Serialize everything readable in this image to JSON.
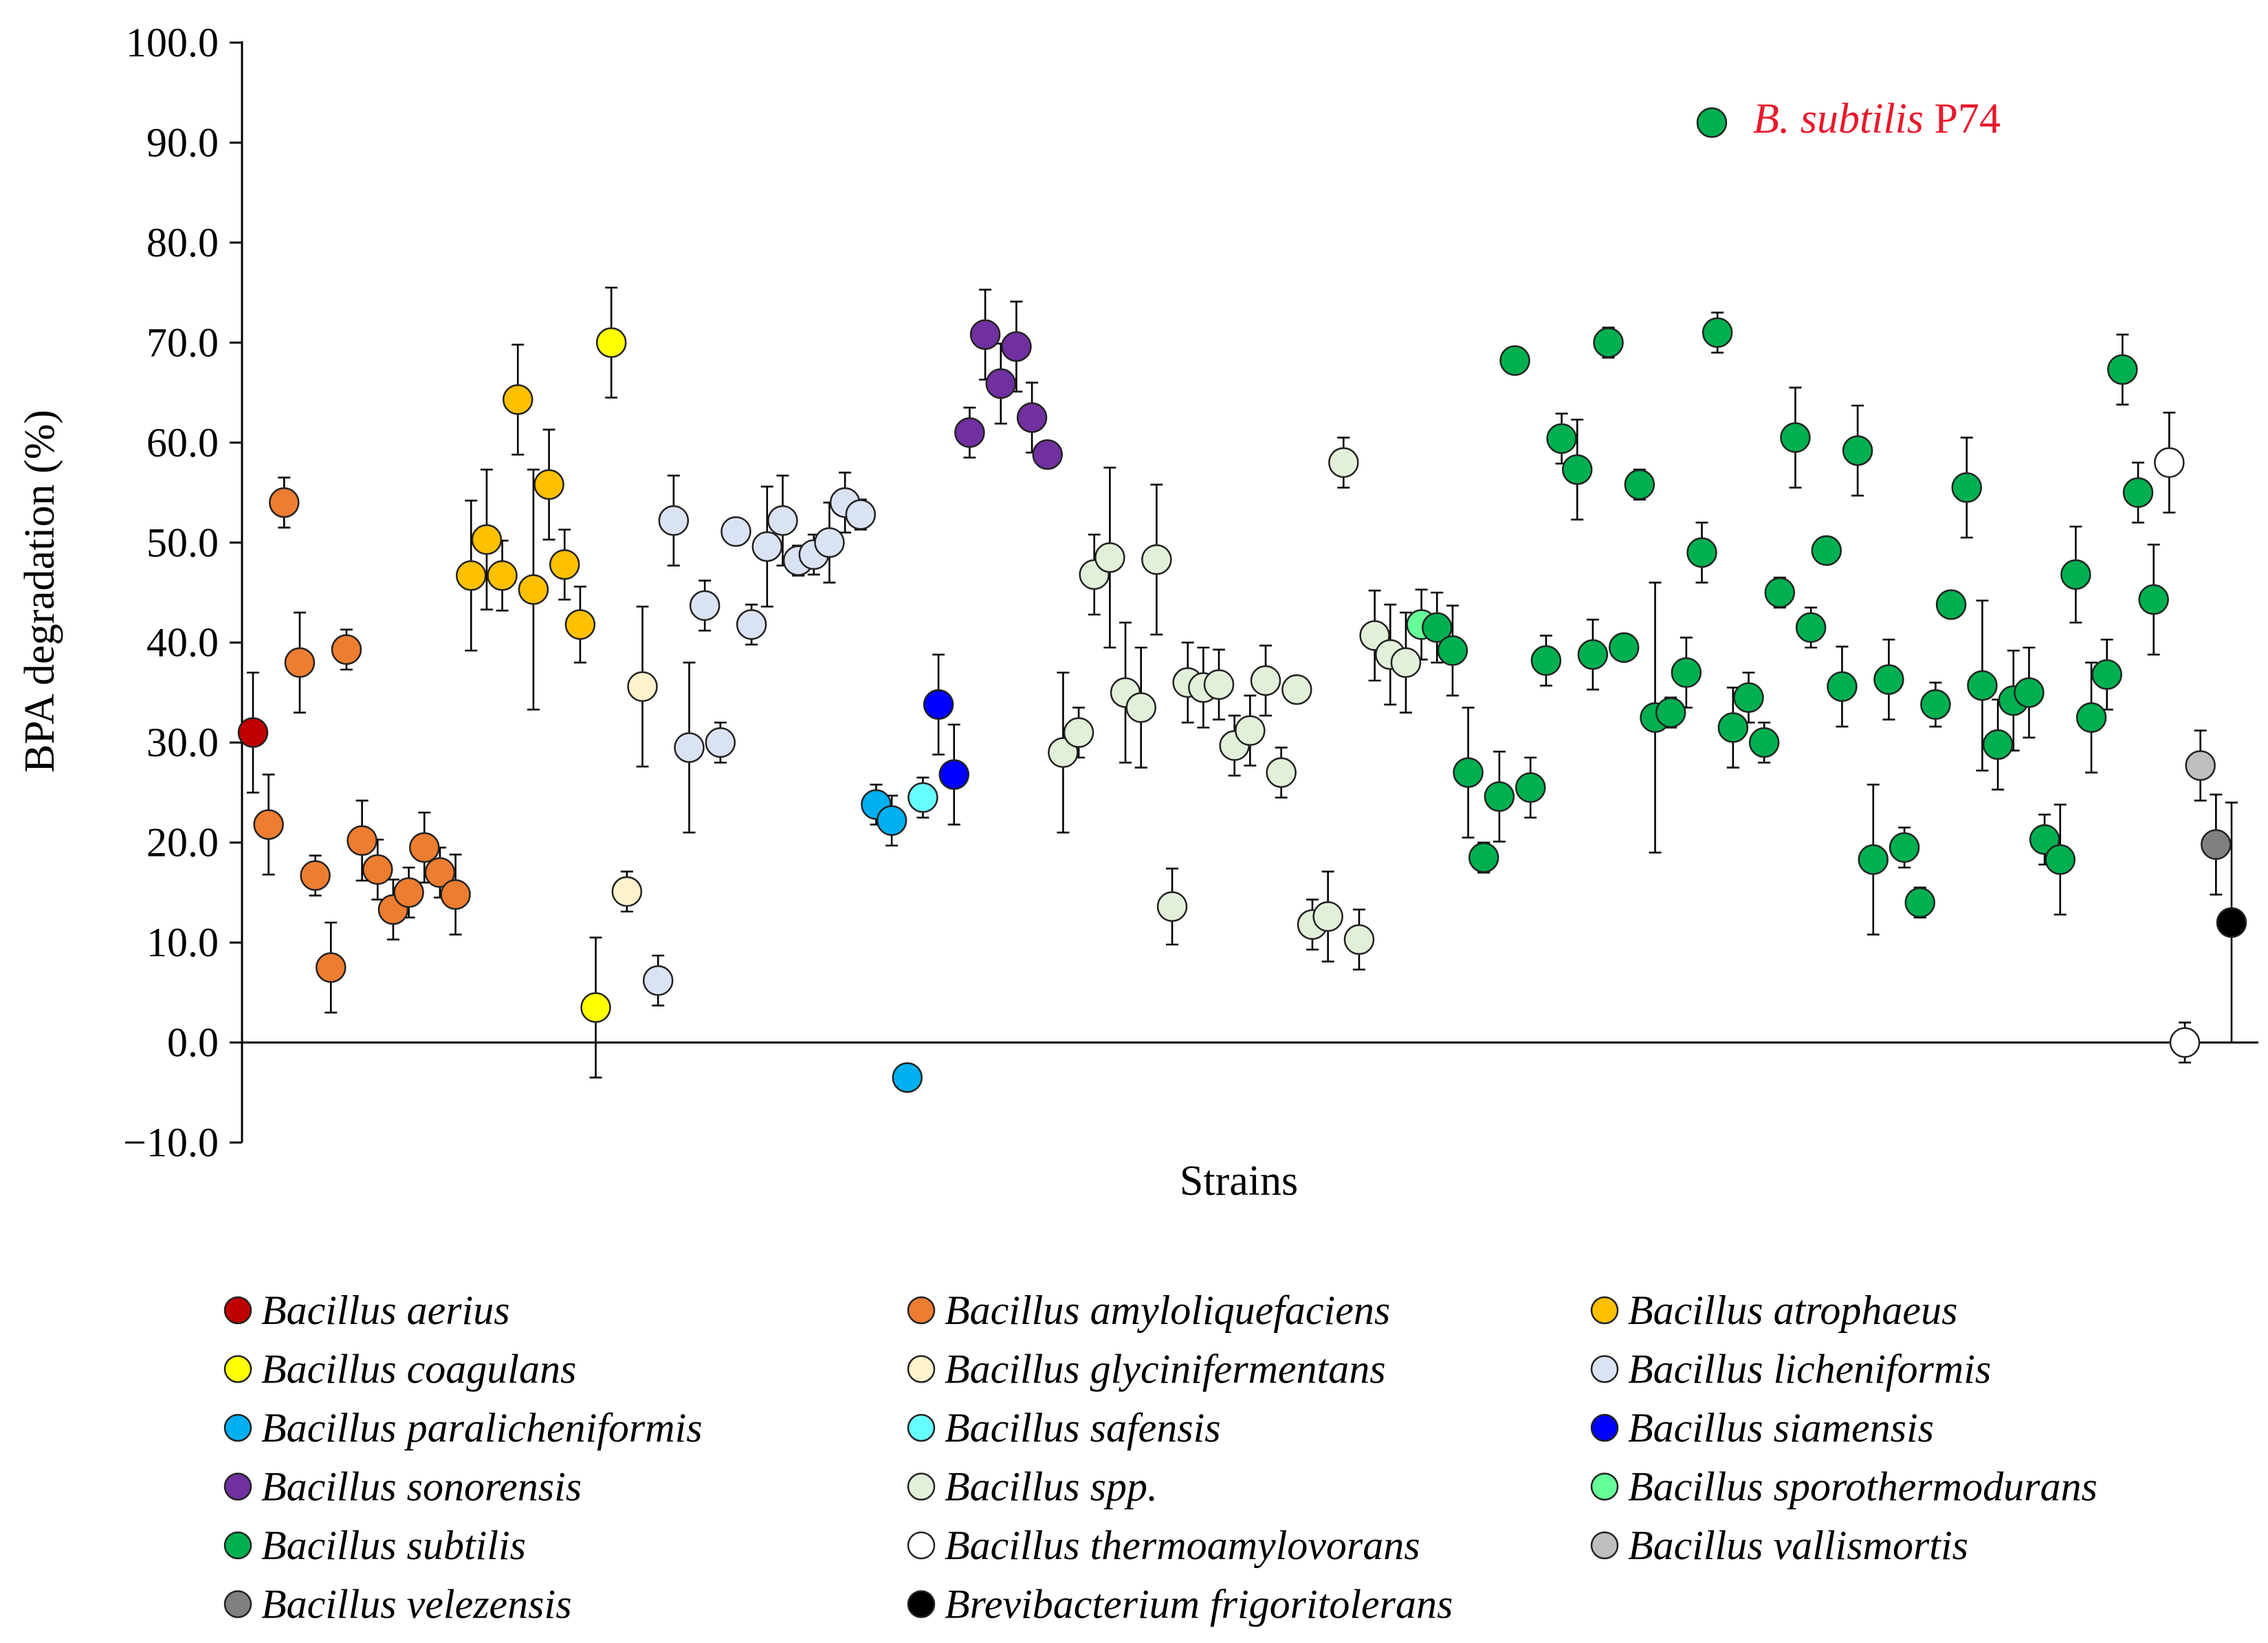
{
  "chart_data": {
    "type": "scatter",
    "title": "",
    "xlabel": "Strains",
    "ylabel": "BPA degradation (%)",
    "ylim": [
      -10,
      100
    ],
    "yticks": [
      "100.0",
      "90.0",
      "80.0",
      "70.0",
      "60.0",
      "50.0",
      "40.0",
      "30.0",
      "20.0",
      "10.0",
      "0.0",
      "−10.0"
    ],
    "annotation": {
      "italic": "B. subtilis",
      "rest": " P74",
      "value": 92.0,
      "species": "Bacillus subtilis",
      "x": 97
    },
    "species": [
      {
        "name": "Bacillus aerius",
        "color": "#c00000"
      },
      {
        "name": "Bacillus amyloliquefaciens",
        "color": "#ed7d31"
      },
      {
        "name": "Bacillus atrophaeus",
        "color": "#ffc000"
      },
      {
        "name": "Bacillus coagulans",
        "color": "#ffff00"
      },
      {
        "name": "Bacillus glycinifermentans",
        "color": "#fff2cc"
      },
      {
        "name": "Bacillus licheniformis",
        "color": "#dae3f3"
      },
      {
        "name": "Bacillus paralicheniformis",
        "color": "#00b0f0"
      },
      {
        "name": "Bacillus safensis",
        "color": "#66ffff"
      },
      {
        "name": "Bacillus siamensis",
        "color": "#0000ff"
      },
      {
        "name": "Bacillus sonorensis",
        "color": "#7030a0"
      },
      {
        "name": "Bacillus spp.",
        "color": "#e2f0d9"
      },
      {
        "name": "Bacillus sporothermodurans",
        "color": "#66ff99"
      },
      {
        "name": "Bacillus subtilis",
        "color": "#00b050"
      },
      {
        "name": "Bacillus thermoamylovorans",
        "color": "#ffffff"
      },
      {
        "name": "Bacillus vallismortis",
        "color": "#bfbfbf"
      },
      {
        "name": "Bacillus velezensis",
        "color": "#808080"
      },
      {
        "name": "Brevibacterium frigoritolerans",
        "color": "#000000"
      }
    ],
    "points": [
      {
        "s": 0,
        "x": 1,
        "y": 31.0,
        "e": 6
      },
      {
        "s": 1,
        "x": 2,
        "y": 21.8,
        "e": 5
      },
      {
        "s": 1,
        "x": 3,
        "y": 54.0,
        "e": 2.5
      },
      {
        "s": 1,
        "x": 4,
        "y": 38.0,
        "e": 5
      },
      {
        "s": 1,
        "x": 5,
        "y": 16.7,
        "e": 2
      },
      {
        "s": 1,
        "x": 6,
        "y": 7.5,
        "e": 4.5
      },
      {
        "s": 1,
        "x": 7,
        "y": 39.3,
        "e": 2
      },
      {
        "s": 1,
        "x": 8,
        "y": 20.2,
        "e": 4
      },
      {
        "s": 1,
        "x": 9,
        "y": 17.3,
        "e": 3
      },
      {
        "s": 1,
        "x": 10,
        "y": 13.3,
        "e": 3
      },
      {
        "s": 1,
        "x": 11,
        "y": 15.0,
        "e": 2.5
      },
      {
        "s": 1,
        "x": 12,
        "y": 19.5,
        "e": 3.5
      },
      {
        "s": 1,
        "x": 13,
        "y": 17.0,
        "e": 2.5
      },
      {
        "s": 1,
        "x": 14,
        "y": 14.8,
        "e": 4
      },
      {
        "s": 2,
        "x": 15,
        "y": 46.7,
        "e": 7.5
      },
      {
        "s": 2,
        "x": 16,
        "y": 50.3,
        "e": 7
      },
      {
        "s": 2,
        "x": 17,
        "y": 46.7,
        "e": 3.5
      },
      {
        "s": 2,
        "x": 18,
        "y": 64.3,
        "e": 5.5
      },
      {
        "s": 2,
        "x": 19,
        "y": 45.3,
        "e": 12
      },
      {
        "s": 2,
        "x": 20,
        "y": 55.8,
        "e": 5.5
      },
      {
        "s": 2,
        "x": 21,
        "y": 47.8,
        "e": 3.5
      },
      {
        "s": 2,
        "x": 22,
        "y": 41.8,
        "e": 3.8
      },
      {
        "s": 3,
        "x": 23,
        "y": 3.5,
        "e": 7
      },
      {
        "s": 3,
        "x": 24,
        "y": 70.0,
        "e": 5.5
      },
      {
        "s": 4,
        "x": 25,
        "y": 15.1,
        "e": 2
      },
      {
        "s": 4,
        "x": 26,
        "y": 35.6,
        "e": 8
      },
      {
        "s": 5,
        "x": 27,
        "y": 6.2,
        "e": 2.5
      },
      {
        "s": 5,
        "x": 28,
        "y": 52.2,
        "e": 4.5
      },
      {
        "s": 5,
        "x": 29,
        "y": 29.5,
        "e": 8.5
      },
      {
        "s": 5,
        "x": 30,
        "y": 43.7,
        "e": 2.5
      },
      {
        "s": 5,
        "x": 31,
        "y": 30.0,
        "e": 2
      },
      {
        "s": 5,
        "x": 32,
        "y": 51.1,
        "e": 1
      },
      {
        "s": 5,
        "x": 33,
        "y": 41.8,
        "e": 2
      },
      {
        "s": 5,
        "x": 34,
        "y": 49.6,
        "e": 6
      },
      {
        "s": 5,
        "x": 35,
        "y": 52.2,
        "e": 4.5
      },
      {
        "s": 5,
        "x": 36,
        "y": 48.2,
        "e": 1.5
      },
      {
        "s": 5,
        "x": 37,
        "y": 48.8,
        "e": 2
      },
      {
        "s": 5,
        "x": 38,
        "y": 50.0,
        "e": 4
      },
      {
        "s": 5,
        "x": 39,
        "y": 54.0,
        "e": 3
      },
      {
        "s": 5,
        "x": 40,
        "y": 52.8,
        "e": 1.5
      },
      {
        "s": 6,
        "x": 41,
        "y": 23.8,
        "e": 2
      },
      {
        "s": 6,
        "x": 42,
        "y": 22.2,
        "e": 2.5
      },
      {
        "s": 6,
        "x": 43,
        "y": -3.5,
        "e": 0
      },
      {
        "s": 7,
        "x": 44,
        "y": 24.5,
        "e": 2
      },
      {
        "s": 8,
        "x": 45,
        "y": 33.8,
        "e": 5
      },
      {
        "s": 8,
        "x": 46,
        "y": 26.8,
        "e": 5
      },
      {
        "s": 9,
        "x": 47,
        "y": 61.0,
        "e": 2.5
      },
      {
        "s": 9,
        "x": 48,
        "y": 70.8,
        "e": 4.5
      },
      {
        "s": 9,
        "x": 49,
        "y": 65.9,
        "e": 4
      },
      {
        "s": 9,
        "x": 50,
        "y": 69.6,
        "e": 4.5
      },
      {
        "s": 9,
        "x": 51,
        "y": 62.5,
        "e": 3.5
      },
      {
        "s": 9,
        "x": 52,
        "y": 58.8,
        "e": 1
      },
      {
        "s": 10,
        "x": 53,
        "y": 29.0,
        "e": 8
      },
      {
        "s": 10,
        "x": 54,
        "y": 31.0,
        "e": 2.5
      },
      {
        "s": 10,
        "x": 55,
        "y": 46.8,
        "e": 4
      },
      {
        "s": 10,
        "x": 56,
        "y": 48.5,
        "e": 9
      },
      {
        "s": 10,
        "x": 57,
        "y": 35.0,
        "e": 7
      },
      {
        "s": 10,
        "x": 58,
        "y": 33.5,
        "e": 6
      },
      {
        "s": 10,
        "x": 59,
        "y": 48.3,
        "e": 7.5
      },
      {
        "s": 10,
        "x": 60,
        "y": 13.6,
        "e": 3.8
      },
      {
        "s": 10,
        "x": 61,
        "y": 36.0,
        "e": 4
      },
      {
        "s": 10,
        "x": 62,
        "y": 35.5,
        "e": 4
      },
      {
        "s": 10,
        "x": 63,
        "y": 35.8,
        "e": 3.5
      },
      {
        "s": 10,
        "x": 64,
        "y": 29.7,
        "e": 3
      },
      {
        "s": 10,
        "x": 65,
        "y": 31.2,
        "e": 3.5
      },
      {
        "s": 10,
        "x": 66,
        "y": 36.2,
        "e": 3.5
      },
      {
        "s": 10,
        "x": 67,
        "y": 27.0,
        "e": 2.5
      },
      {
        "s": 10,
        "x": 68,
        "y": 35.3,
        "e": 1
      },
      {
        "s": 10,
        "x": 69,
        "y": 11.8,
        "e": 2.5
      },
      {
        "s": 10,
        "x": 70,
        "y": 12.6,
        "e": 4.5
      },
      {
        "s": 10,
        "x": 71,
        "y": 58.0,
        "e": 2.5
      },
      {
        "s": 10,
        "x": 72,
        "y": 10.3,
        "e": 3
      },
      {
        "s": 10,
        "x": 73,
        "y": 40.7,
        "e": 4.5
      },
      {
        "s": 10,
        "x": 74,
        "y": 38.8,
        "e": 5
      },
      {
        "s": 10,
        "x": 75,
        "y": 38.0,
        "e": 5
      },
      {
        "s": 11,
        "x": 76,
        "y": 41.8,
        "e": 3.5
      },
      {
        "s": 12,
        "x": 77,
        "y": 41.5,
        "e": 3.5
      },
      {
        "s": 12,
        "x": 78,
        "y": 39.2,
        "e": 4.5
      },
      {
        "s": 12,
        "x": 79,
        "y": 27.0,
        "e": 6.5
      },
      {
        "s": 12,
        "x": 80,
        "y": 18.5,
        "e": 1.5
      },
      {
        "s": 12,
        "x": 81,
        "y": 24.6,
        "e": 4.5
      },
      {
        "s": 12,
        "x": 82,
        "y": 68.2,
        "e": 0
      },
      {
        "s": 12,
        "x": 83,
        "y": 25.5,
        "e": 3
      },
      {
        "s": 12,
        "x": 84,
        "y": 38.2,
        "e": 2.5
      },
      {
        "s": 12,
        "x": 85,
        "y": 60.4,
        "e": 2.5
      },
      {
        "s": 12,
        "x": 86,
        "y": 57.3,
        "e": 5
      },
      {
        "s": 12,
        "x": 87,
        "y": 38.8,
        "e": 3.5
      },
      {
        "s": 12,
        "x": 88,
        "y": 70.0,
        "e": 1.5
      },
      {
        "s": 12,
        "x": 89,
        "y": 39.5,
        "e": 1
      },
      {
        "s": 12,
        "x": 90,
        "y": 55.8,
        "e": 1.5
      },
      {
        "s": 12,
        "x": 91,
        "y": 32.5,
        "e": 13.5
      },
      {
        "s": 12,
        "x": 92,
        "y": 33.0,
        "e": 1.5
      },
      {
        "s": 12,
        "x": 93,
        "y": 37.0,
        "e": 3.5
      },
      {
        "s": 12,
        "x": 94,
        "y": 49.0,
        "e": 3
      },
      {
        "s": 12,
        "x": 95,
        "y": 71.0,
        "e": 2
      },
      {
        "s": 12,
        "x": 96,
        "y": 31.5,
        "e": 4
      },
      {
        "s": 12,
        "x": 97,
        "y": 34.5,
        "e": 2.5
      },
      {
        "s": 12,
        "x": 98,
        "y": 30.0,
        "e": 2
      },
      {
        "s": 12,
        "x": 99,
        "y": 45.0,
        "e": 1.5
      },
      {
        "s": 12,
        "x": 100,
        "y": 60.5,
        "e": 5
      },
      {
        "s": 12,
        "x": 101,
        "y": 41.5,
        "e": 2
      },
      {
        "s": 12,
        "x": 102,
        "y": 49.2,
        "e": 0
      },
      {
        "s": 12,
        "x": 103,
        "y": 35.6,
        "e": 4
      },
      {
        "s": 12,
        "x": 104,
        "y": 59.2,
        "e": 4.5
      },
      {
        "s": 12,
        "x": 105,
        "y": 18.3,
        "e": 7.5
      },
      {
        "s": 12,
        "x": 106,
        "y": 36.3,
        "e": 4
      },
      {
        "s": 12,
        "x": 107,
        "y": 19.5,
        "e": 2
      },
      {
        "s": 12,
        "x": 108,
        "y": 14.0,
        "e": 1.5
      },
      {
        "s": 12,
        "x": 109,
        "y": 33.8,
        "e": 2.2
      },
      {
        "s": 12,
        "x": 110,
        "y": 43.8,
        "e": 0
      },
      {
        "s": 12,
        "x": 111,
        "y": 55.5,
        "e": 5
      },
      {
        "s": 12,
        "x": 112,
        "y": 35.7,
        "e": 8.5
      },
      {
        "s": 12,
        "x": 113,
        "y": 29.8,
        "e": 4.5
      },
      {
        "s": 12,
        "x": 114,
        "y": 34.2,
        "e": 5
      },
      {
        "s": 12,
        "x": 115,
        "y": 35.0,
        "e": 4.5
      },
      {
        "s": 12,
        "x": 116,
        "y": 20.3,
        "e": 2.5
      },
      {
        "s": 12,
        "x": 117,
        "y": 18.3,
        "e": 5.5
      },
      {
        "s": 12,
        "x": 118,
        "y": 46.8,
        "e": 4.8
      },
      {
        "s": 12,
        "x": 119,
        "y": 32.5,
        "e": 5.5
      },
      {
        "s": 12,
        "x": 120,
        "y": 36.8,
        "e": 3.5
      },
      {
        "s": 12,
        "x": 121,
        "y": 67.3,
        "e": 3.5
      },
      {
        "s": 12,
        "x": 122,
        "y": 55.0,
        "e": 3
      },
      {
        "s": 12,
        "x": 123,
        "y": 44.3,
        "e": 5.5
      },
      {
        "s": 13,
        "x": 124,
        "y": 58.0,
        "e": 5
      },
      {
        "s": 13,
        "x": 125,
        "y": 0.0,
        "e": 2
      },
      {
        "s": 14,
        "x": 126,
        "y": 27.7,
        "e": 3.5
      },
      {
        "s": 15,
        "x": 127,
        "y": 19.8,
        "e": 5
      },
      {
        "s": 16,
        "x": 128,
        "y": 12.0,
        "e": 12
      }
    ]
  }
}
